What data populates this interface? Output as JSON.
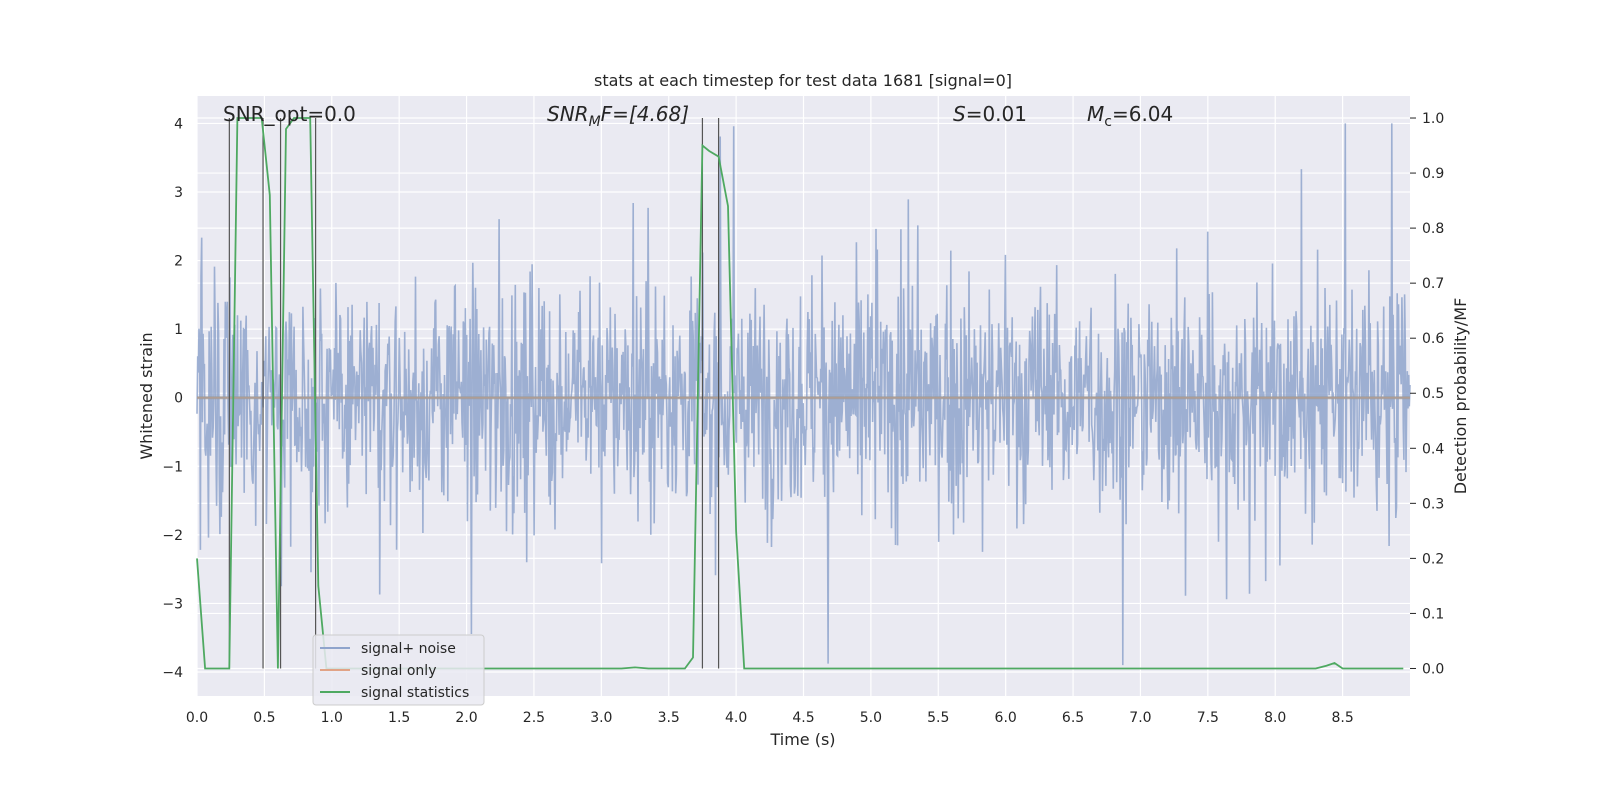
{
  "chart_data": {
    "type": "line",
    "title": "stats at each timestep for test data 1681 [signal=0]",
    "xlabel": "Time (s)",
    "ylabel": "Whitened strain",
    "y2label": "Detection probability/MF",
    "xlim": [
      0.0,
      9.0
    ],
    "ylim": [
      -4.35,
      4.4
    ],
    "y2lim": [
      -0.05,
      1.04
    ],
    "xticks": [
      0.0,
      0.5,
      1.0,
      1.5,
      2.0,
      2.5,
      3.0,
      3.5,
      4.0,
      4.5,
      5.0,
      5.5,
      6.0,
      6.5,
      7.0,
      7.5,
      8.0,
      8.5
    ],
    "xtick_labels": [
      "0.0",
      "0.5",
      "1.0",
      "1.5",
      "2.0",
      "2.5",
      "3.0",
      "3.5",
      "4.0",
      "4.5",
      "5.0",
      "5.5",
      "6.0",
      "6.5",
      "7.0",
      "7.5",
      "8.0",
      "8.5"
    ],
    "yticks": [
      4,
      3,
      2,
      1,
      0,
      -1,
      -2,
      -3,
      -4
    ],
    "ytick_labels": [
      "4",
      "3",
      "2",
      "1",
      "0",
      "−1",
      "−2",
      "−3",
      "−4"
    ],
    "y2ticks": [
      1.0,
      0.9,
      0.8,
      0.7,
      0.6,
      0.5,
      0.4,
      0.3,
      0.2,
      0.1,
      0.0
    ],
    "y2tick_labels": [
      "1.0",
      "0.9",
      "0.8",
      "0.7",
      "0.6",
      "0.5",
      "0.4",
      "0.3",
      "0.2",
      "0.1",
      "0.0"
    ],
    "grid": true,
    "legend_position": "lower-left",
    "annotations": {
      "snr_opt": "SNR_opt=0.0",
      "snr_mf_italic": "SNR",
      "snr_mf_sub": "M",
      "snr_mf_rest": "F=[4.68]",
      "s_italic": "S",
      "s_rest": "=0.01",
      "mc_italic": "M",
      "mc_sub": "c",
      "mc_rest": "=6.04"
    },
    "vertical_lines_x": [
      0.24,
      0.49,
      0.62,
      0.88,
      3.75,
      3.87
    ],
    "series": [
      {
        "name": "signal+ noise",
        "color": "#8fa4cc",
        "style": "dense noise trace, amplitude about ±1.5 typical with spikes to about ±3.8",
        "value_range": [
          -3.9,
          4.0
        ]
      },
      {
        "name": "signal only",
        "color": "#e1a386",
        "style": "flat at 0",
        "value": 0
      },
      {
        "name": "signal statistics",
        "color": "#4ea961",
        "axis": "right",
        "x": [
          0.0,
          0.06,
          0.12,
          0.18,
          0.24,
          0.3,
          0.36,
          0.42,
          0.48,
          0.54,
          0.6,
          0.66,
          0.72,
          0.78,
          0.84,
          0.9,
          0.96,
          1.0,
          1.5,
          2.0,
          2.5,
          3.0,
          3.15,
          3.25,
          3.35,
          3.5,
          3.62,
          3.68,
          3.75,
          3.8,
          3.87,
          3.94,
          4.0,
          4.06,
          4.2,
          5.0,
          6.0,
          7.0,
          8.0,
          8.3,
          8.38,
          8.44,
          8.5,
          8.6,
          8.75,
          8.95
        ],
        "values": [
          0.2,
          0.0,
          0.0,
          0.0,
          0.0,
          1.0,
          1.0,
          1.0,
          1.0,
          0.86,
          0.0,
          0.98,
          1.0,
          1.0,
          1.0,
          0.15,
          0.0,
          0.0,
          0.0,
          0.0,
          0.0,
          0.0,
          0.0,
          0.002,
          0.0,
          0.0,
          0.0,
          0.02,
          0.95,
          0.94,
          0.93,
          0.84,
          0.25,
          0.0,
          0.0,
          0.0,
          0.0,
          0.0,
          0.0,
          0.0,
          0.005,
          0.01,
          0.0,
          0.0,
          0.0,
          0.0
        ]
      }
    ]
  }
}
